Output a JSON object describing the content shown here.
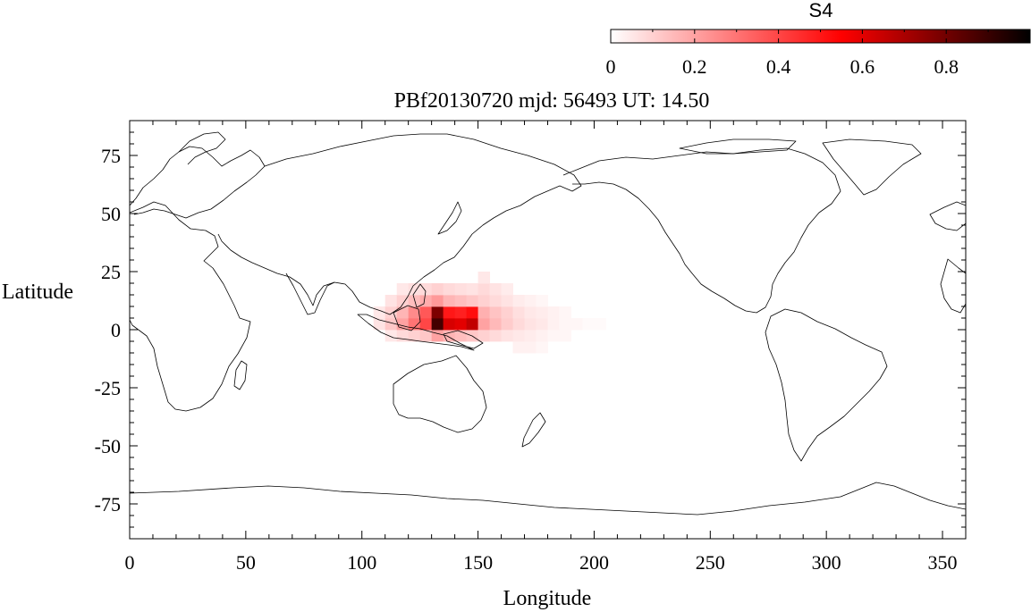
{
  "colorbar": {
    "title": "S4",
    "tick_labels": [
      "0",
      "0.2",
      "0.4",
      "0.6",
      "0.8"
    ],
    "tick_values": [
      0,
      0.2,
      0.4,
      0.6,
      0.8
    ],
    "range": [
      0,
      1
    ],
    "colors": {
      "low": "#ffffff",
      "mid": "#ff0000",
      "high": "#000000"
    }
  },
  "title": "PBf20130720  mjd: 56493  UT:  14.50",
  "chart_data": {
    "type": "heatmap",
    "title": "PBf20130720  mjd: 56493  UT:  14.50",
    "xlabel": "Longitude",
    "ylabel": "Latitude",
    "xlim": [
      0,
      360
    ],
    "ylim": [
      -90,
      90
    ],
    "xticks": [
      0,
      50,
      100,
      150,
      200,
      250,
      300,
      350
    ],
    "xtick_labels": [
      "0",
      "50",
      "100",
      "150",
      "200",
      "250",
      "300",
      "350"
    ],
    "yticks": [
      75,
      50,
      25,
      0,
      -25,
      -50,
      -75
    ],
    "ytick_labels": [
      "75",
      "50",
      "25",
      "0",
      "-25",
      "-50",
      "-75"
    ],
    "grid": false,
    "value_name": "S4",
    "cells": [
      {
        "lon": [
          105,
          110
        ],
        "lat": [
          0,
          5
        ],
        "value": 0.06
      },
      {
        "lon": [
          105,
          110
        ],
        "lat": [
          5,
          10
        ],
        "value": 0.05
      },
      {
        "lon": [
          110,
          115
        ],
        "lat": [
          -5,
          0
        ],
        "value": 0.05
      },
      {
        "lon": [
          110,
          115
        ],
        "lat": [
          0,
          5
        ],
        "value": 0.12
      },
      {
        "lon": [
          110,
          115
        ],
        "lat": [
          5,
          10
        ],
        "value": 0.1
      },
      {
        "lon": [
          110,
          115
        ],
        "lat": [
          10,
          15
        ],
        "value": 0.06
      },
      {
        "lon": [
          115,
          120
        ],
        "lat": [
          -5,
          0
        ],
        "value": 0.08
      },
      {
        "lon": [
          115,
          120
        ],
        "lat": [
          0,
          5
        ],
        "value": 0.2
      },
      {
        "lon": [
          115,
          120
        ],
        "lat": [
          5,
          10
        ],
        "value": 0.16
      },
      {
        "lon": [
          115,
          120
        ],
        "lat": [
          10,
          15
        ],
        "value": 0.1
      },
      {
        "lon": [
          115,
          120
        ],
        "lat": [
          15,
          20
        ],
        "value": 0.05
      },
      {
        "lon": [
          120,
          125
        ],
        "lat": [
          -5,
          0
        ],
        "value": 0.1
      },
      {
        "lon": [
          120,
          125
        ],
        "lat": [
          0,
          5
        ],
        "value": 0.3
      },
      {
        "lon": [
          120,
          125
        ],
        "lat": [
          5,
          10
        ],
        "value": 0.25
      },
      {
        "lon": [
          120,
          125
        ],
        "lat": [
          10,
          15
        ],
        "value": 0.14
      },
      {
        "lon": [
          120,
          125
        ],
        "lat": [
          15,
          20
        ],
        "value": 0.07
      },
      {
        "lon": [
          125,
          130
        ],
        "lat": [
          -5,
          0
        ],
        "value": 0.12
      },
      {
        "lon": [
          125,
          130
        ],
        "lat": [
          0,
          5
        ],
        "value": 0.4
      },
      {
        "lon": [
          125,
          130
        ],
        "lat": [
          5,
          10
        ],
        "value": 0.36
      },
      {
        "lon": [
          125,
          130
        ],
        "lat": [
          10,
          15
        ],
        "value": 0.18
      },
      {
        "lon": [
          125,
          130
        ],
        "lat": [
          15,
          20
        ],
        "value": 0.08
      },
      {
        "lon": [
          130,
          135
        ],
        "lat": [
          -5,
          0
        ],
        "value": 0.2
      },
      {
        "lon": [
          130,
          135
        ],
        "lat": [
          0,
          5
        ],
        "value": 0.88
      },
      {
        "lon": [
          130,
          135
        ],
        "lat": [
          5,
          10
        ],
        "value": 0.78
      },
      {
        "lon": [
          130,
          135
        ],
        "lat": [
          10,
          15
        ],
        "value": 0.22
      },
      {
        "lon": [
          130,
          135
        ],
        "lat": [
          15,
          20
        ],
        "value": 0.1
      },
      {
        "lon": [
          135,
          140
        ],
        "lat": [
          -5,
          0
        ],
        "value": 0.16
      },
      {
        "lon": [
          135,
          140
        ],
        "lat": [
          0,
          5
        ],
        "value": 0.62
      },
      {
        "lon": [
          135,
          140
        ],
        "lat": [
          5,
          10
        ],
        "value": 0.5
      },
      {
        "lon": [
          135,
          140
        ],
        "lat": [
          10,
          15
        ],
        "value": 0.16
      },
      {
        "lon": [
          135,
          140
        ],
        "lat": [
          15,
          20
        ],
        "value": 0.08
      },
      {
        "lon": [
          140,
          145
        ],
        "lat": [
          -5,
          0
        ],
        "value": 0.14
      },
      {
        "lon": [
          140,
          145
        ],
        "lat": [
          0,
          5
        ],
        "value": 0.6
      },
      {
        "lon": [
          140,
          145
        ],
        "lat": [
          5,
          10
        ],
        "value": 0.48
      },
      {
        "lon": [
          140,
          145
        ],
        "lat": [
          10,
          15
        ],
        "value": 0.14
      },
      {
        "lon": [
          140,
          145
        ],
        "lat": [
          15,
          20
        ],
        "value": 0.07
      },
      {
        "lon": [
          145,
          150
        ],
        "lat": [
          -5,
          0
        ],
        "value": 0.12
      },
      {
        "lon": [
          145,
          150
        ],
        "lat": [
          0,
          5
        ],
        "value": 0.66
      },
      {
        "lon": [
          145,
          150
        ],
        "lat": [
          5,
          10
        ],
        "value": 0.52
      },
      {
        "lon": [
          145,
          150
        ],
        "lat": [
          10,
          15
        ],
        "value": 0.12
      },
      {
        "lon": [
          145,
          150
        ],
        "lat": [
          15,
          20
        ],
        "value": 0.06
      },
      {
        "lon": [
          150,
          155
        ],
        "lat": [
          -5,
          0
        ],
        "value": 0.1
      },
      {
        "lon": [
          150,
          155
        ],
        "lat": [
          0,
          5
        ],
        "value": 0.2
      },
      {
        "lon": [
          150,
          155
        ],
        "lat": [
          5,
          10
        ],
        "value": 0.17
      },
      {
        "lon": [
          150,
          155
        ],
        "lat": [
          10,
          15
        ],
        "value": 0.1
      },
      {
        "lon": [
          150,
          155
        ],
        "lat": [
          15,
          20
        ],
        "value": 0.08
      },
      {
        "lon": [
          150,
          155
        ],
        "lat": [
          20,
          25
        ],
        "value": 0.05
      },
      {
        "lon": [
          155,
          160
        ],
        "lat": [
          -5,
          0
        ],
        "value": 0.08
      },
      {
        "lon": [
          155,
          160
        ],
        "lat": [
          0,
          5
        ],
        "value": 0.15
      },
      {
        "lon": [
          155,
          160
        ],
        "lat": [
          5,
          10
        ],
        "value": 0.13
      },
      {
        "lon": [
          155,
          160
        ],
        "lat": [
          10,
          15
        ],
        "value": 0.08
      },
      {
        "lon": [
          155,
          160
        ],
        "lat": [
          15,
          20
        ],
        "value": 0.06
      },
      {
        "lon": [
          160,
          165
        ],
        "lat": [
          -5,
          0
        ],
        "value": 0.06
      },
      {
        "lon": [
          160,
          165
        ],
        "lat": [
          0,
          5
        ],
        "value": 0.11
      },
      {
        "lon": [
          160,
          165
        ],
        "lat": [
          5,
          10
        ],
        "value": 0.1
      },
      {
        "lon": [
          160,
          165
        ],
        "lat": [
          10,
          15
        ],
        "value": 0.06
      },
      {
        "lon": [
          160,
          165
        ],
        "lat": [
          15,
          20
        ],
        "value": 0.04
      },
      {
        "lon": [
          165,
          170
        ],
        "lat": [
          -10,
          -5
        ],
        "value": 0.03
      },
      {
        "lon": [
          165,
          170
        ],
        "lat": [
          -5,
          0
        ],
        "value": 0.05
      },
      {
        "lon": [
          165,
          170
        ],
        "lat": [
          0,
          5
        ],
        "value": 0.08
      },
      {
        "lon": [
          165,
          170
        ],
        "lat": [
          5,
          10
        ],
        "value": 0.07
      },
      {
        "lon": [
          165,
          170
        ],
        "lat": [
          10,
          15
        ],
        "value": 0.04
      },
      {
        "lon": [
          170,
          175
        ],
        "lat": [
          -10,
          -5
        ],
        "value": 0.03
      },
      {
        "lon": [
          170,
          175
        ],
        "lat": [
          -5,
          0
        ],
        "value": 0.04
      },
      {
        "lon": [
          170,
          175
        ],
        "lat": [
          0,
          5
        ],
        "value": 0.06
      },
      {
        "lon": [
          170,
          175
        ],
        "lat": [
          5,
          10
        ],
        "value": 0.05
      },
      {
        "lon": [
          170,
          175
        ],
        "lat": [
          10,
          15
        ],
        "value": 0.03
      },
      {
        "lon": [
          175,
          180
        ],
        "lat": [
          -10,
          -5
        ],
        "value": 0.02
      },
      {
        "lon": [
          175,
          180
        ],
        "lat": [
          -5,
          0
        ],
        "value": 0.03
      },
      {
        "lon": [
          175,
          180
        ],
        "lat": [
          0,
          5
        ],
        "value": 0.05
      },
      {
        "lon": [
          175,
          180
        ],
        "lat": [
          5,
          10
        ],
        "value": 0.04
      },
      {
        "lon": [
          175,
          180
        ],
        "lat": [
          10,
          15
        ],
        "value": 0.02
      },
      {
        "lon": [
          180,
          185
        ],
        "lat": [
          -5,
          0
        ],
        "value": 0.02
      },
      {
        "lon": [
          180,
          185
        ],
        "lat": [
          0,
          5
        ],
        "value": 0.03
      },
      {
        "lon": [
          180,
          185
        ],
        "lat": [
          5,
          10
        ],
        "value": 0.03
      },
      {
        "lon": [
          185,
          190
        ],
        "lat": [
          -5,
          0
        ],
        "value": 0.02
      },
      {
        "lon": [
          185,
          190
        ],
        "lat": [
          0,
          5
        ],
        "value": 0.02
      },
      {
        "lon": [
          185,
          190
        ],
        "lat": [
          5,
          10
        ],
        "value": 0.02
      },
      {
        "lon": [
          190,
          195
        ],
        "lat": [
          0,
          5
        ],
        "value": 0.02
      },
      {
        "lon": [
          195,
          200
        ],
        "lat": [
          0,
          5
        ],
        "value": 0.01
      },
      {
        "lon": [
          200,
          205
        ],
        "lat": [
          0,
          5
        ],
        "value": 0.01
      }
    ]
  }
}
